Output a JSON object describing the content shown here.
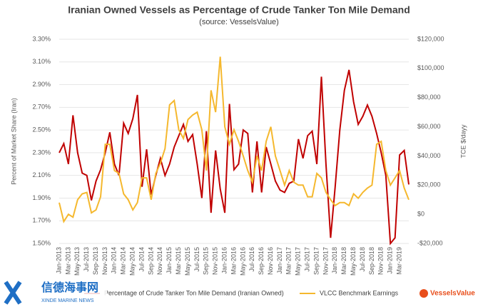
{
  "chart_data": {
    "type": "line",
    "title": "Iranian Owned Vessels as Percentage of Crude Tanker Ton Mile Demand",
    "subtitle": "(source: VesselsValue)",
    "ylabel": "Percent of Market Share (Iran)",
    "y2label": "TCE $/dayy",
    "categories": [
      "Jan-2013",
      null,
      "Mar-2013",
      null,
      "May-2013",
      null,
      "Jul-2013",
      null,
      "Sep-2013",
      null,
      "Nov-2013",
      null,
      "Jan-2014",
      null,
      "Mar-2014",
      null,
      "May-2014",
      null,
      "Jul-2014",
      null,
      "Sep-2014",
      null,
      "Nov-2014",
      null,
      "Jan-2015",
      null,
      "Mar-2015",
      null,
      "May-2015",
      null,
      "Jul-2015",
      null,
      "Sep-2015",
      null,
      "Nov-2015",
      null,
      "Jan-2016",
      null,
      "Mar-2016",
      null,
      "May-2016",
      null,
      "Jul-2016",
      null,
      "Sep-2016",
      null,
      "Nov-2016",
      null,
      "Jan-2017",
      null,
      "Mar-2017",
      null,
      "May-2017",
      null,
      "Jul-2017",
      null,
      "Sep-2017",
      null,
      "Nov-2017",
      null,
      "Jan-2018",
      null,
      "Mar-2018",
      null,
      "May-2018",
      null,
      "Jul-2018",
      null,
      "Sep-2018",
      null,
      "Nov-2018",
      null,
      "Jan-2019",
      null,
      "Mar-2019",
      null,
      null
    ],
    "series": [
      {
        "name": "Percentage of Crude Tanker Ton Mile Demand (Iranian Owned)",
        "color": "#c00000",
        "axis": "y",
        "values": [
          2.3,
          2.38,
          2.2,
          2.63,
          2.3,
          2.12,
          2.1,
          1.88,
          2.05,
          2.15,
          2.3,
          2.48,
          2.2,
          2.1,
          2.56,
          2.47,
          2.6,
          2.81,
          2.0,
          2.33,
          1.93,
          2.1,
          2.25,
          2.1,
          2.2,
          2.35,
          2.45,
          2.55,
          2.4,
          2.46,
          2.2,
          1.9,
          2.49,
          1.77,
          2.32,
          1.98,
          1.77,
          2.73,
          2.15,
          2.2,
          2.5,
          2.47,
          1.95,
          2.4,
          1.95,
          2.35,
          2.2,
          2.05,
          1.97,
          1.95,
          2.03,
          2.05,
          2.42,
          2.25,
          2.45,
          2.49,
          2.2,
          2.97,
          2.2,
          1.55,
          2.0,
          2.5,
          2.85,
          3.03,
          2.75,
          2.55,
          2.62,
          2.72,
          2.62,
          2.47,
          2.3,
          2.1,
          1.5,
          1.55,
          2.28,
          2.32,
          2.02
        ]
      },
      {
        "name": "VLCC Benchmark Earnings",
        "color": "#f5b82e",
        "axis": "y2",
        "values": [
          8000,
          -5000,
          0,
          -2000,
          10000,
          14000,
          15000,
          1000,
          3000,
          12000,
          48000,
          48000,
          30000,
          28000,
          14000,
          10000,
          3000,
          8000,
          25000,
          25000,
          10000,
          28000,
          35000,
          45000,
          75000,
          78000,
          58000,
          52000,
          65000,
          68000,
          70000,
          58000,
          30000,
          85000,
          70000,
          108000,
          60000,
          48000,
          58000,
          50000,
          40000,
          30000,
          22000,
          40000,
          30000,
          50000,
          60000,
          40000,
          30000,
          20000,
          30000,
          22000,
          20000,
          20000,
          12000,
          12000,
          28000,
          25000,
          15000,
          10000,
          6000,
          8000,
          8000,
          6000,
          14000,
          11000,
          15000,
          18000,
          20000,
          48000,
          50000,
          30000,
          20000,
          25000,
          30000,
          18000,
          10000
        ]
      }
    ],
    "ylim": [
      1.5,
      3.3
    ],
    "yticks": [
      {
        "value": 1.5,
        "label": "1.50%"
      },
      {
        "value": 1.7,
        "label": "1.70%"
      },
      {
        "value": 1.9,
        "label": "1.90%"
      },
      {
        "value": 2.1,
        "label": "2.10%"
      },
      {
        "value": 2.3,
        "label": "2.30%"
      },
      {
        "value": 2.5,
        "label": "2.50%"
      },
      {
        "value": 2.7,
        "label": "2.70%"
      },
      {
        "value": 2.9,
        "label": "2.90%"
      },
      {
        "value": 3.1,
        "label": "3.10%"
      },
      {
        "value": 3.3,
        "label": "3.30%"
      }
    ],
    "y2lim": [
      -20000,
      120000
    ],
    "y2ticks": [
      {
        "value": -20000,
        "label": "-$20,000"
      },
      {
        "value": 0,
        "label": "$0"
      },
      {
        "value": 20000,
        "label": "$20,000"
      },
      {
        "value": 40000,
        "label": "$40,000"
      },
      {
        "value": 60000,
        "label": "$60,000"
      },
      {
        "value": 80000,
        "label": "$80,000"
      },
      {
        "value": 100000,
        "label": "$100,000"
      },
      {
        "value": 120000,
        "label": "$120,000"
      }
    ],
    "grid": true,
    "legend": "bottom"
  },
  "watermark": {
    "chinese": "信德海事网",
    "english": "XINDE MARINE NEWS",
    "brand": "VesselsValue"
  }
}
